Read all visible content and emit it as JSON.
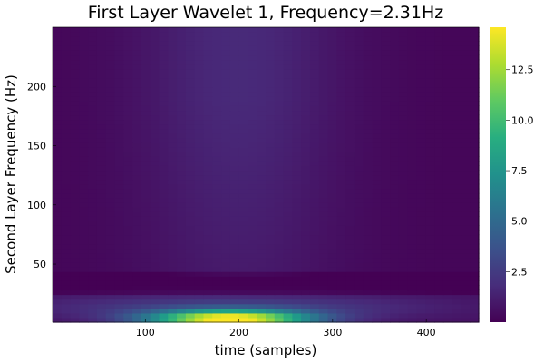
{
  "chart_data": {
    "type": "heatmap",
    "title": "First Layer Wavelet 1, Frequency=2.31Hz",
    "xlabel": "time (samples)",
    "ylabel": "Second Layer Frequency (Hz)",
    "xlim": [
      1,
      456
    ],
    "ylim": [
      1,
      250
    ],
    "x_ticks": [
      100,
      200,
      300,
      400
    ],
    "y_ticks": [
      50,
      100,
      150,
      200
    ],
    "colorbar": {
      "colormap": "viridis",
      "range": [
        0,
        14.6
      ],
      "ticks": [
        "2.5",
        "5.0",
        "7.5",
        "10.0",
        "12.5"
      ],
      "tick_values": [
        2.5,
        5.0,
        7.5,
        10.0,
        12.5
      ]
    },
    "grid": false,
    "peak": {
      "x": 190,
      "y": 4,
      "value": 14.6
    }
  }
}
